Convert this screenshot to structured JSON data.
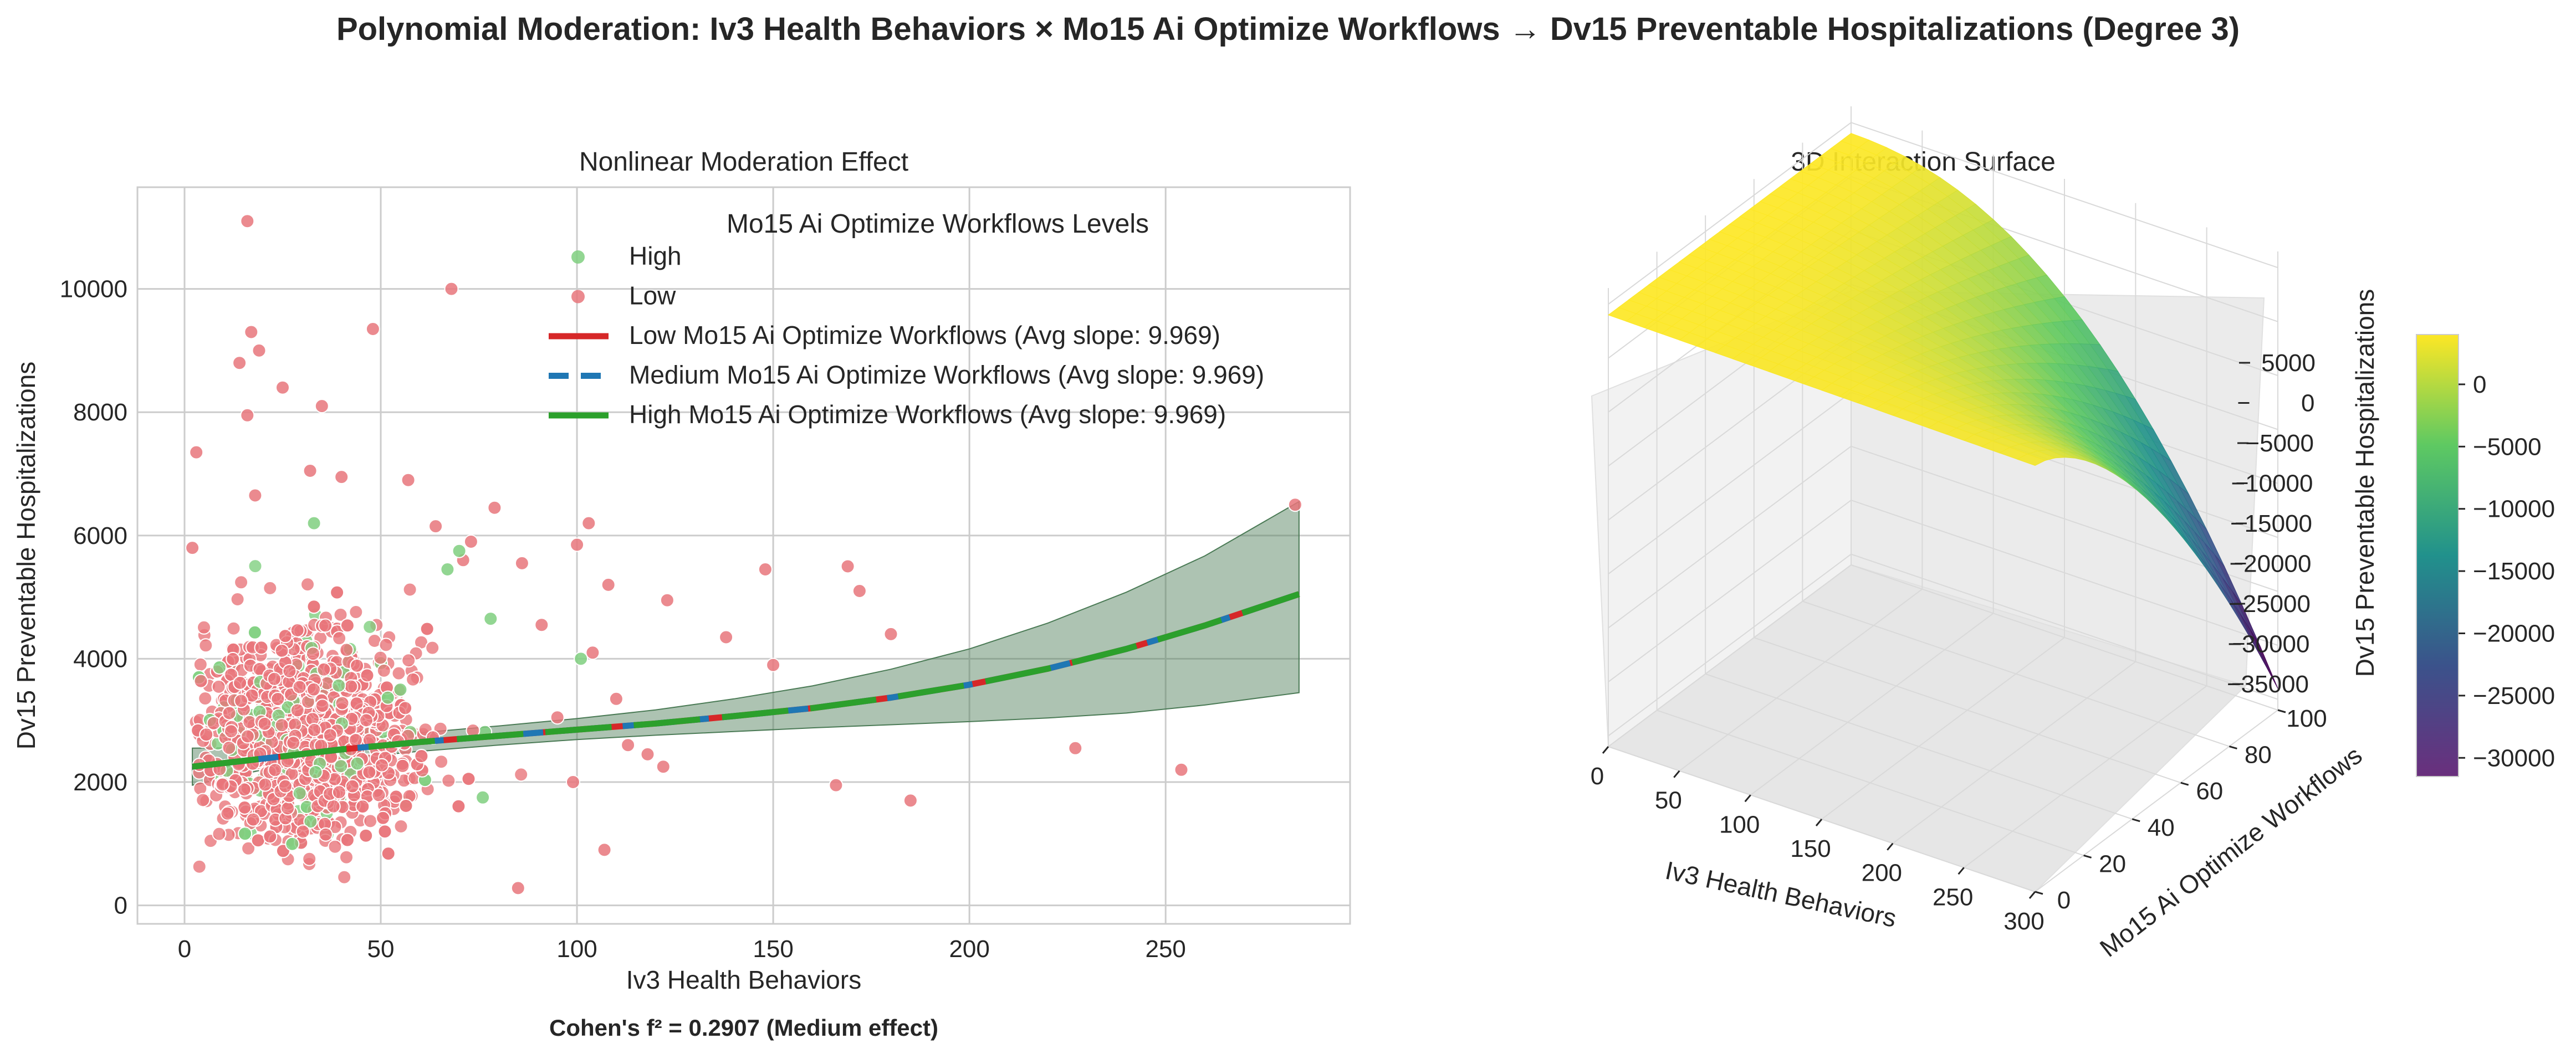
{
  "suptitle": "Polynomial Moderation: Iv3 Health Behaviors × Mo15 Ai Optimize Workflows → Dv15 Preventable Hospitalizations (Degree 3)",
  "footnote": "Cohen's f² = 0.2907 (Medium effect)",
  "chart_data": [
    {
      "type": "scatter",
      "title": "Nonlinear Moderation Effect",
      "xlabel": "Iv3 Health Behaviors",
      "ylabel": "Dv15 Preventable Hospitalizations",
      "xlim": [
        -12,
        297
      ],
      "ylim": [
        -300,
        11650
      ],
      "xticks": [
        0,
        50,
        100,
        150,
        200,
        250
      ],
      "yticks": [
        0,
        2000,
        4000,
        6000,
        8000,
        10000
      ],
      "grid": true,
      "legend": {
        "title": "Mo15 Ai Optimize Workflows Levels",
        "placement": "upper-right",
        "entries": [
          {
            "label": "High",
            "kind": "dot",
            "color": "#7fcf7f"
          },
          {
            "label": "Low",
            "kind": "dot",
            "color": "#e8767b"
          },
          {
            "label": "Low Mo15 Ai Optimize Workflows (Avg slope: 9.969)",
            "kind": "line",
            "color": "#d62728",
            "dash": "solid"
          },
          {
            "label": "Medium Mo15 Ai Optimize Workflows (Avg slope: 9.969)",
            "kind": "line",
            "color": "#1f77b4",
            "dash": "dashed"
          },
          {
            "label": "High Mo15 Ai Optimize Workflows (Avg slope: 9.969)",
            "kind": "line",
            "color": "#2ca02c",
            "dash": "solid"
          }
        ]
      },
      "scatter_series": [
        {
          "name": "Low",
          "color": "#e8767b",
          "outliers": [
            [
              16,
              11100
            ],
            [
              68,
              10000
            ],
            [
              48,
              9350
            ],
            [
              17,
              9300
            ],
            [
              14,
              8800
            ],
            [
              19,
              9000
            ],
            [
              25,
              8400
            ],
            [
              35,
              8100
            ],
            [
              3,
              7350
            ],
            [
              16,
              7950
            ],
            [
              40,
              6950
            ],
            [
              57,
              6900
            ],
            [
              18,
              6650
            ],
            [
              32,
              7050
            ],
            [
              79,
              6450
            ],
            [
              64,
              6150
            ],
            [
              73,
              5900
            ],
            [
              103,
              6200
            ],
            [
              71,
              5600
            ],
            [
              86,
              5550
            ],
            [
              100,
              5850
            ],
            [
              108,
              5200
            ],
            [
              148,
              5450
            ],
            [
              169,
              5500
            ],
            [
              172,
              5100
            ],
            [
              180,
              4400
            ],
            [
              123,
              4950
            ],
            [
              138,
              4350
            ],
            [
              150,
              3900
            ],
            [
              2,
              5800
            ],
            [
              110,
              3350
            ],
            [
              113,
              2600
            ],
            [
              122,
              2250
            ],
            [
              166,
              1950
            ],
            [
              185,
              1700
            ],
            [
              227,
              2550
            ],
            [
              254,
              2200
            ],
            [
              283,
              6500
            ],
            [
              107,
              900
            ],
            [
              85,
              280
            ],
            [
              99,
              2000
            ],
            [
              118,
              2450
            ],
            [
              95,
              3050
            ],
            [
              104,
              4100
            ],
            [
              91,
              4550
            ]
          ]
        },
        {
          "name": "High",
          "color": "#7fcf7f",
          "outliers": [
            [
              33,
              6200
            ],
            [
              70,
              5750
            ],
            [
              67,
              5450
            ],
            [
              78,
              4650
            ],
            [
              101,
              4000
            ],
            [
              76,
              1750
            ],
            [
              55,
              3500
            ],
            [
              44,
              2300
            ]
          ]
        }
      ],
      "fit_lines": [
        {
          "name": "Low Mo15 Ai Optimize Workflows (Avg slope: 9.969)",
          "color": "#d62728",
          "x": [
            2,
            20,
            40,
            60,
            80,
            100,
            120,
            140,
            160,
            180,
            200,
            220,
            240,
            260,
            284
          ],
          "y": [
            2250,
            2380,
            2530,
            2650,
            2750,
            2850,
            2950,
            3070,
            3200,
            3370,
            3580,
            3840,
            4160,
            4540,
            5050
          ]
        },
        {
          "name": "Medium Mo15 Ai Optimize Workflows (Avg slope: 9.969)",
          "color": "#1f77b4",
          "x": [
            2,
            20,
            40,
            60,
            80,
            100,
            120,
            140,
            160,
            180,
            200,
            220,
            240,
            260,
            284
          ],
          "y": [
            2250,
            2380,
            2530,
            2650,
            2750,
            2850,
            2950,
            3070,
            3200,
            3370,
            3580,
            3840,
            4160,
            4540,
            5050
          ]
        },
        {
          "name": "High Mo15 Ai Optimize Workflows (Avg slope: 9.969)",
          "color": "#2ca02c",
          "x": [
            2,
            20,
            40,
            60,
            80,
            100,
            120,
            140,
            160,
            180,
            200,
            220,
            240,
            260,
            284
          ],
          "y": [
            2250,
            2380,
            2530,
            2650,
            2750,
            2850,
            2950,
            3070,
            3200,
            3370,
            3580,
            3840,
            4160,
            4540,
            5050
          ]
        }
      ],
      "confidence_band": {
        "color": "#4a7a55",
        "x": [
          2,
          20,
          40,
          60,
          80,
          100,
          120,
          140,
          160,
          180,
          200,
          220,
          240,
          260,
          284
        ],
        "lower": [
          1950,
          2200,
          2380,
          2500,
          2600,
          2690,
          2760,
          2820,
          2880,
          2930,
          2980,
          3040,
          3120,
          3250,
          3450
        ],
        "upper": [
          2550,
          2560,
          2680,
          2800,
          2910,
          3030,
          3170,
          3350,
          3560,
          3830,
          4160,
          4580,
          5080,
          5670,
          6550
        ]
      }
    },
    {
      "type": "surface",
      "title": "3D Interaction Surface",
      "xlabel": "Iv3 Health Behaviors",
      "ylabel": "Mo15 Ai Optimize Workflows",
      "zlabel": "Dv15 Preventable Hospitalizations",
      "xticks": [
        0,
        50,
        100,
        150,
        200,
        250,
        300
      ],
      "yticks": [
        0,
        20,
        40,
        60,
        80,
        100
      ],
      "zticks": [
        5000,
        0,
        -5000,
        -10000,
        -15000,
        -20000,
        -25000,
        -30000,
        -35000
      ],
      "colormap": "viridis",
      "colorbar_ticks": [
        0,
        -5000,
        -10000,
        -15000,
        -20000,
        -25000,
        -30000
      ],
      "colorbar_range": [
        -31500,
        4000
      ],
      "zlim": [
        -36000,
        6500
      ],
      "surface_description_values": {
        "min": -33500,
        "max": 4000
      }
    }
  ]
}
